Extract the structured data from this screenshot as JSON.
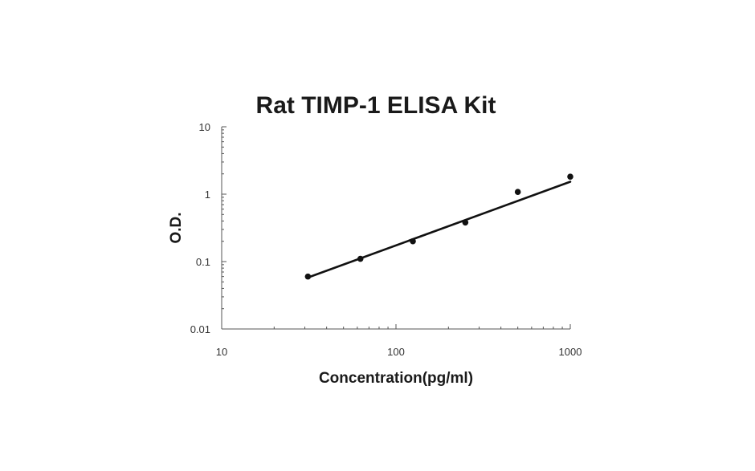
{
  "chart_data": {
    "type": "scatter",
    "title": "Rat TIMP-1 ELISA Kit",
    "xlabel": "Concentration(pg/ml)",
    "ylabel": "O.D.",
    "x_scale": "log",
    "y_scale": "log",
    "xlim": [
      10,
      1000
    ],
    "ylim": [
      0.01,
      10
    ],
    "x_ticks": [
      {
        "value": 10,
        "label": "10"
      },
      {
        "value": 100,
        "label": "100"
      },
      {
        "value": 1000,
        "label": "1000"
      }
    ],
    "y_ticks": [
      {
        "value": 10,
        "label": "10"
      },
      {
        "value": 1,
        "label": "1"
      },
      {
        "value": 0.1,
        "label": "0.1"
      },
      {
        "value": 0.01,
        "label": "0.01"
      }
    ],
    "grid": false,
    "series": [
      {
        "points": [
          {
            "x": 31.25,
            "y": 0.06
          },
          {
            "x": 62.5,
            "y": 0.11
          },
          {
            "x": 125,
            "y": 0.2
          },
          {
            "x": 250,
            "y": 0.38
          },
          {
            "x": 500,
            "y": 1.08
          },
          {
            "x": 1000,
            "y": 1.82
          }
        ]
      }
    ],
    "trendline": {
      "type": "power",
      "from": {
        "x": 31.25,
        "y": 0.058
      },
      "to": {
        "x": 1000,
        "y": 1.53
      }
    },
    "colors": {
      "marker": "#111111",
      "line": "#111111",
      "axis": "#555555",
      "text": "#1a1a1a"
    }
  }
}
